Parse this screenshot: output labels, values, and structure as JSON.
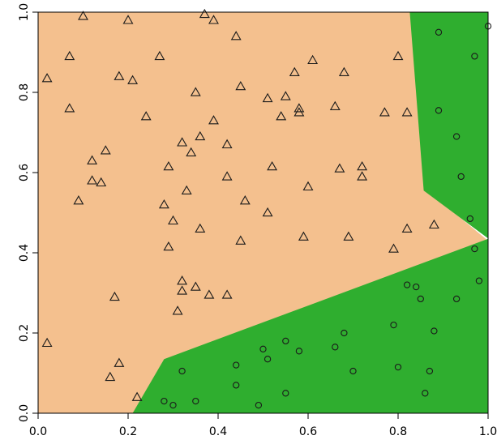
{
  "chart_data": {
    "type": "scatter",
    "title": "",
    "xlabel": "",
    "ylabel": "",
    "xlim": [
      0,
      1
    ],
    "ylim": [
      0,
      1
    ],
    "x_ticks": [
      "0.0",
      "0.2",
      "0.4",
      "0.6",
      "0.8",
      "1.0"
    ],
    "y_ticks": [
      "0.0",
      "0.2",
      "0.4",
      "0.6",
      "0.8",
      "1.0"
    ],
    "grid": false,
    "legend": "none",
    "colors": {
      "region_triangle": "#f4c08e",
      "region_circle": "#2fae2f",
      "marker_stroke": "#1a1a1a"
    },
    "decision_regions": [
      {
        "class": "triangle",
        "color": "#f4c08e",
        "polygon": [
          [
            0,
            0
          ],
          [
            0,
            1
          ],
          [
            0.86,
            1
          ],
          [
            0.86,
            0.56
          ],
          [
            1,
            0.43
          ],
          [
            1,
            0
          ],
          [
            0,
            0
          ]
        ]
      },
      {
        "class": "circle",
        "color": "#2fae2f",
        "polygon": [
          [
            0.21,
            0
          ],
          [
            0.28,
            0.135
          ],
          [
            1,
            0.435
          ],
          [
            1,
            0
          ]
        ]
      },
      {
        "class": "circle",
        "color": "#2fae2f",
        "polygon": [
          [
            0.826,
            1
          ],
          [
            1,
            1
          ],
          [
            1,
            0.436
          ],
          [
            0.857,
            0.555
          ]
        ]
      }
    ],
    "series": [
      {
        "marker": "triangle",
        "points": [
          [
            0.02,
            0.835
          ],
          [
            0.07,
            0.89
          ],
          [
            0.1,
            0.99
          ],
          [
            0.2,
            0.98
          ],
          [
            0.27,
            0.89
          ],
          [
            0.37,
            0.995
          ],
          [
            0.39,
            0.98
          ],
          [
            0.44,
            0.94
          ],
          [
            0.07,
            0.76
          ],
          [
            0.18,
            0.84
          ],
          [
            0.21,
            0.83
          ],
          [
            0.24,
            0.74
          ],
          [
            0.35,
            0.8
          ],
          [
            0.39,
            0.73
          ],
          [
            0.45,
            0.815
          ],
          [
            0.51,
            0.785
          ],
          [
            0.55,
            0.79
          ],
          [
            0.57,
            0.85
          ],
          [
            0.61,
            0.88
          ],
          [
            0.68,
            0.85
          ],
          [
            0.8,
            0.89
          ],
          [
            0.54,
            0.74
          ],
          [
            0.58,
            0.75
          ],
          [
            0.58,
            0.76
          ],
          [
            0.66,
            0.765
          ],
          [
            0.82,
            0.75
          ],
          [
            0.77,
            0.75
          ],
          [
            0.15,
            0.655
          ],
          [
            0.12,
            0.63
          ],
          [
            0.12,
            0.58
          ],
          [
            0.14,
            0.575
          ],
          [
            0.09,
            0.53
          ],
          [
            0.29,
            0.615
          ],
          [
            0.32,
            0.675
          ],
          [
            0.34,
            0.65
          ],
          [
            0.36,
            0.69
          ],
          [
            0.33,
            0.555
          ],
          [
            0.28,
            0.52
          ],
          [
            0.42,
            0.67
          ],
          [
            0.42,
            0.59
          ],
          [
            0.46,
            0.53
          ],
          [
            0.52,
            0.615
          ],
          [
            0.6,
            0.565
          ],
          [
            0.67,
            0.61
          ],
          [
            0.72,
            0.615
          ],
          [
            0.72,
            0.59
          ],
          [
            0.51,
            0.5
          ],
          [
            0.3,
            0.48
          ],
          [
            0.36,
            0.46
          ],
          [
            0.29,
            0.415
          ],
          [
            0.45,
            0.43
          ],
          [
            0.59,
            0.44
          ],
          [
            0.69,
            0.44
          ],
          [
            0.82,
            0.46
          ],
          [
            0.88,
            0.47
          ],
          [
            0.79,
            0.41
          ],
          [
            0.02,
            0.175
          ],
          [
            0.32,
            0.33
          ],
          [
            0.32,
            0.305
          ],
          [
            0.35,
            0.315
          ],
          [
            0.38,
            0.295
          ],
          [
            0.31,
            0.255
          ],
          [
            0.17,
            0.29
          ],
          [
            0.42,
            0.295
          ],
          [
            0.18,
            0.125
          ],
          [
            0.16,
            0.09
          ],
          [
            0.22,
            0.04
          ]
        ]
      },
      {
        "marker": "circle",
        "points": [
          [
            0.89,
            0.95
          ],
          [
            1.0,
            0.965
          ],
          [
            0.97,
            0.89
          ],
          [
            0.89,
            0.755
          ],
          [
            0.93,
            0.69
          ],
          [
            0.94,
            0.59
          ],
          [
            0.96,
            0.485
          ],
          [
            0.97,
            0.41
          ],
          [
            0.98,
            0.33
          ],
          [
            0.93,
            0.285
          ],
          [
            0.82,
            0.32
          ],
          [
            0.84,
            0.315
          ],
          [
            0.85,
            0.285
          ],
          [
            0.79,
            0.22
          ],
          [
            0.88,
            0.205
          ],
          [
            0.8,
            0.115
          ],
          [
            0.87,
            0.105
          ],
          [
            0.86,
            0.05
          ],
          [
            0.7,
            0.105
          ],
          [
            0.68,
            0.2
          ],
          [
            0.66,
            0.165
          ],
          [
            0.58,
            0.155
          ],
          [
            0.55,
            0.18
          ],
          [
            0.5,
            0.16
          ],
          [
            0.51,
            0.135
          ],
          [
            0.44,
            0.12
          ],
          [
            0.32,
            0.105
          ],
          [
            0.44,
            0.07
          ],
          [
            0.55,
            0.05
          ],
          [
            0.49,
            0.02
          ],
          [
            0.35,
            0.03
          ],
          [
            0.28,
            0.03
          ],
          [
            0.3,
            0.02
          ]
        ]
      }
    ]
  }
}
